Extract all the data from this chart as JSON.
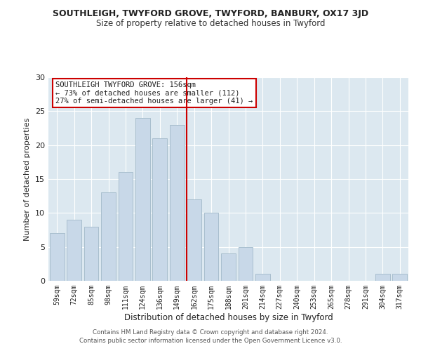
{
  "title": "SOUTHLEIGH, TWYFORD GROVE, TWYFORD, BANBURY, OX17 3JD",
  "subtitle": "Size of property relative to detached houses in Twyford",
  "xlabel": "Distribution of detached houses by size in Twyford",
  "ylabel": "Number of detached properties",
  "bar_labels": [
    "59sqm",
    "72sqm",
    "85sqm",
    "98sqm",
    "111sqm",
    "124sqm",
    "136sqm",
    "149sqm",
    "162sqm",
    "175sqm",
    "188sqm",
    "201sqm",
    "214sqm",
    "227sqm",
    "240sqm",
    "253sqm",
    "265sqm",
    "278sqm",
    "291sqm",
    "304sqm",
    "317sqm"
  ],
  "bar_values": [
    7,
    9,
    8,
    13,
    16,
    24,
    21,
    23,
    12,
    10,
    4,
    5,
    1,
    0,
    0,
    0,
    0,
    0,
    0,
    1,
    1
  ],
  "bar_color": "#c8d8e8",
  "bar_edgecolor": "#a8bece",
  "highlight_index": 8,
  "highlight_line_color": "#cc0000",
  "annotation_line1": "SOUTHLEIGH TWYFORD GROVE: 156sqm",
  "annotation_line2": "← 73% of detached houses are smaller (112)",
  "annotation_line3": "27% of semi-detached houses are larger (41) →",
  "annotation_box_edgecolor": "#cc0000",
  "annotation_box_facecolor": "#ffffff",
  "ylim": [
    0,
    30
  ],
  "yticks": [
    0,
    5,
    10,
    15,
    20,
    25,
    30
  ],
  "footer1": "Contains HM Land Registry data © Crown copyright and database right 2024.",
  "footer2": "Contains public sector information licensed under the Open Government Licence v3.0.",
  "background_color": "#ffffff",
  "grid_color": "#dce8f0"
}
